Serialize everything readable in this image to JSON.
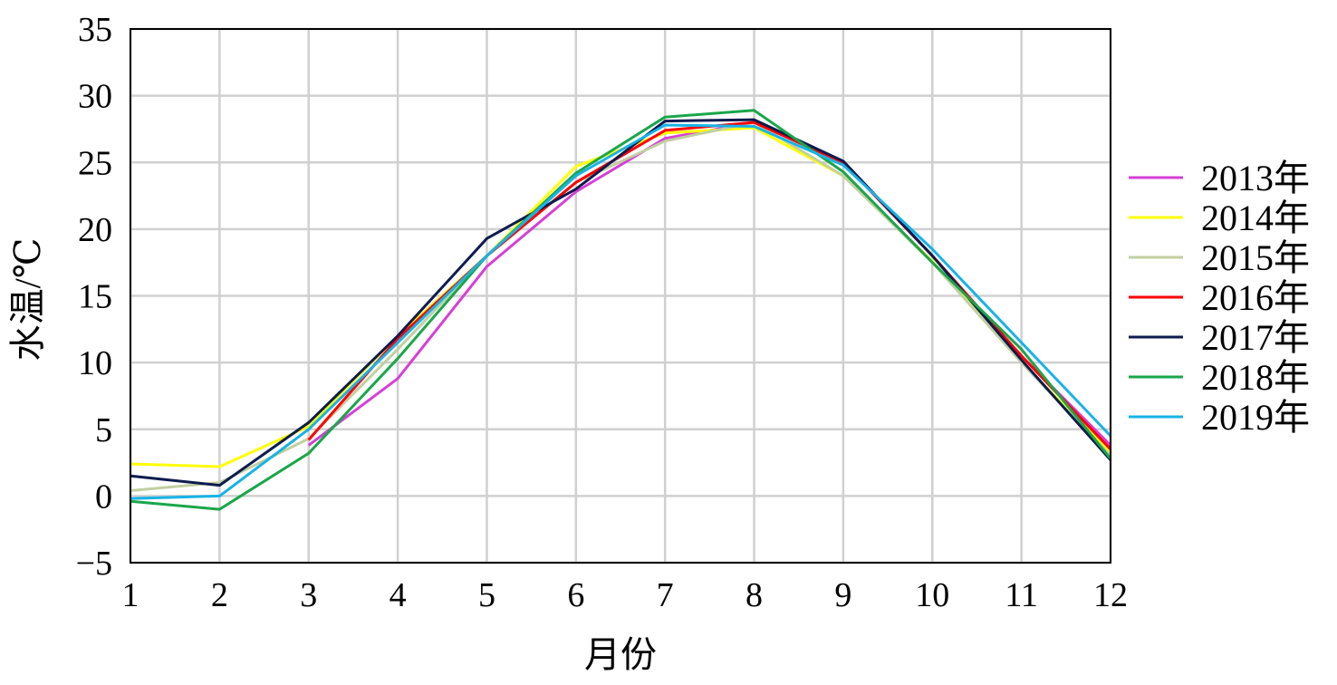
{
  "chart_data": {
    "type": "line",
    "xlabel": "月份",
    "ylabel": "水温/℃",
    "xlim": [
      1,
      12
    ],
    "ylim": [
      -5,
      35
    ],
    "xticks": [
      "1",
      "2",
      "3",
      "4",
      "5",
      "6",
      "7",
      "8",
      "9",
      "10",
      "11",
      "12"
    ],
    "yticks": [
      "35",
      "30",
      "25",
      "20",
      "15",
      "10",
      "5",
      "0",
      "−5"
    ],
    "ytick_values": [
      35,
      30,
      25,
      20,
      15,
      10,
      5,
      0,
      -5
    ],
    "grid": true,
    "legend_position": "right",
    "x": [
      1,
      2,
      3,
      4,
      5,
      6,
      7,
      8,
      9,
      10,
      11,
      12
    ],
    "series": [
      {
        "name": "2013年",
        "color": "#d63fd6",
        "values": [
          null,
          null,
          3.8,
          8.8,
          17.2,
          22.8,
          26.8,
          28.0,
          25.0,
          18.0,
          10.5,
          3.8
        ]
      },
      {
        "name": "2014年",
        "color": "#ffff00",
        "values": [
          2.4,
          2.2,
          5.2,
          12.0,
          18.0,
          24.7,
          27.2,
          27.6,
          24.0,
          17.6,
          10.0,
          3.3
        ]
      },
      {
        "name": "2015年",
        "color": "#c2cfa0",
        "values": [
          0.4,
          1.0,
          4.3,
          11.0,
          18.0,
          23.5,
          26.6,
          28.0,
          24.0,
          17.5,
          10.0,
          3.0
        ]
      },
      {
        "name": "2016年",
        "color": "#ff0000",
        "values": [
          null,
          null,
          4.2,
          11.8,
          18.0,
          23.5,
          27.4,
          28.0,
          25.0,
          18.0,
          10.5,
          3.5
        ]
      },
      {
        "name": "2017年",
        "color": "#0d1b4f",
        "values": [
          1.5,
          0.8,
          5.5,
          12.0,
          19.3,
          23.0,
          28.1,
          28.2,
          25.1,
          18.0,
          10.2,
          2.7
        ]
      },
      {
        "name": "2018年",
        "color": "#1aa64a",
        "values": [
          -0.4,
          -1.0,
          3.2,
          10.3,
          18.0,
          24.2,
          28.4,
          28.9,
          24.3,
          17.5,
          11.0,
          2.8
        ]
      },
      {
        "name": "2019年",
        "color": "#17b3e6",
        "values": [
          -0.2,
          0.0,
          5.0,
          11.5,
          18.0,
          24.0,
          27.8,
          27.7,
          24.8,
          18.5,
          11.5,
          4.5
        ]
      }
    ]
  }
}
